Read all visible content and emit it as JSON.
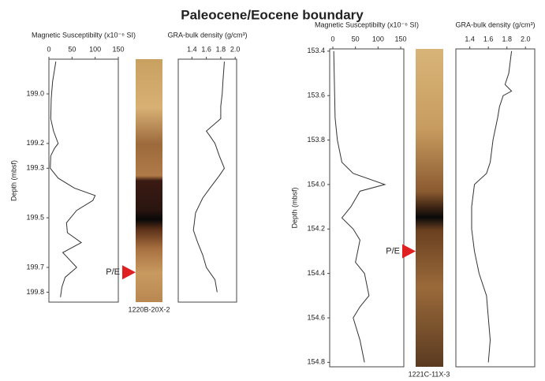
{
  "title": "Paleocene/Eocene boundary",
  "cores": [
    {
      "label": "1220B-20X-2",
      "boundary_label": "P/E",
      "boundary_depth": 199.72
    },
    {
      "label": "1221C-11X-3",
      "boundary_label": "P/E",
      "boundary_depth": 154.3
    }
  ],
  "chart_data": [
    {
      "type": "line",
      "x_label": "Magnetic Susceptibilty (x10⁻⁶ SI)",
      "y_label": "Depth (mbsf)",
      "xlim": [
        0,
        150
      ],
      "xticks": [
        0,
        50,
        100,
        150
      ],
      "ylim": [
        198.86,
        199.84
      ],
      "yticks": [
        {
          "value": 199.0,
          "label": "199.0"
        },
        199.2,
        199.3,
        199.5,
        199.7,
        199.8
      ],
      "series": [
        {
          "color": "#333333",
          "depth": [
            198.87,
            198.95,
            199.02,
            199.1,
            199.15,
            199.2,
            199.22,
            199.25,
            199.3,
            199.34,
            199.38,
            199.41,
            199.43,
            199.47,
            199.52,
            199.56,
            199.6,
            199.64,
            199.67,
            199.7,
            199.74,
            199.78,
            199.82
          ],
          "values": [
            15,
            8,
            5,
            4,
            10,
            20,
            12,
            4,
            3,
            20,
            55,
            100,
            95,
            60,
            38,
            40,
            70,
            30,
            45,
            60,
            35,
            28,
            25
          ]
        }
      ]
    },
    {
      "type": "line",
      "x_label": "GRA-bulk density (g/cm³)",
      "xlim": [
        1.21,
        2.02
      ],
      "xticks": [
        1.4,
        1.6,
        1.8,
        {
          "value": 2.0,
          "label": "2.0"
        }
      ],
      "ylim": [
        198.86,
        199.84
      ],
      "series": [
        {
          "color": "#333333",
          "depth": [
            198.87,
            198.95,
            199.0,
            199.05,
            199.1,
            199.15,
            199.17,
            199.2,
            199.25,
            199.3,
            199.33,
            199.38,
            199.42,
            199.48,
            199.55,
            199.6,
            199.65,
            199.7,
            199.75,
            199.8
          ],
          "values": [
            1.85,
            1.83,
            1.82,
            1.8,
            1.8,
            1.6,
            1.65,
            1.72,
            1.78,
            1.85,
            1.78,
            1.65,
            1.55,
            1.45,
            1.42,
            1.48,
            1.55,
            1.6,
            1.72,
            1.75
          ]
        }
      ]
    },
    {
      "type": "line",
      "x_label": "Magnetic Susceptibilty (x10⁻⁶ SI)",
      "y_label": "Depth (mbsf)",
      "xlim": [
        -7,
        157
      ],
      "xticks": [
        0,
        50,
        100,
        150
      ],
      "ylim": [
        153.39,
        154.82
      ],
      "yticks": [
        153.4,
        153.6,
        153.8,
        {
          "value": 154.0,
          "label": "154.0"
        },
        154.2,
        154.4,
        154.6,
        154.8
      ],
      "series": [
        {
          "color": "#333333",
          "depth": [
            153.4,
            153.5,
            153.6,
            153.7,
            153.8,
            153.9,
            153.95,
            154.0,
            154.03,
            154.1,
            154.15,
            154.2,
            154.25,
            154.3,
            154.35,
            154.4,
            154.5,
            154.55,
            154.6,
            154.7,
            154.8
          ],
          "values": [
            2,
            3,
            4,
            5,
            10,
            20,
            45,
            115,
            60,
            40,
            20,
            45,
            60,
            55,
            50,
            70,
            80,
            60,
            45,
            60,
            70
          ]
        }
      ]
    },
    {
      "type": "line",
      "x_label": "GRA-bulk density (g/cm³)",
      "xlim": [
        1.25,
        2.1
      ],
      "xticks": [
        1.4,
        1.6,
        1.8,
        {
          "value": 2.0,
          "label": "2.0"
        }
      ],
      "ylim": [
        153.39,
        154.82
      ],
      "series": [
        {
          "color": "#333333",
          "depth": [
            153.4,
            153.5,
            153.55,
            153.58,
            153.6,
            153.65,
            153.7,
            153.8,
            153.9,
            153.95,
            154.0,
            154.1,
            154.2,
            154.3,
            154.4,
            154.5,
            154.6,
            154.7,
            154.8
          ],
          "values": [
            1.85,
            1.82,
            1.78,
            1.85,
            1.76,
            1.72,
            1.7,
            1.65,
            1.62,
            1.58,
            1.45,
            1.42,
            1.42,
            1.45,
            1.5,
            1.58,
            1.6,
            1.62,
            1.6
          ]
        }
      ]
    }
  ]
}
